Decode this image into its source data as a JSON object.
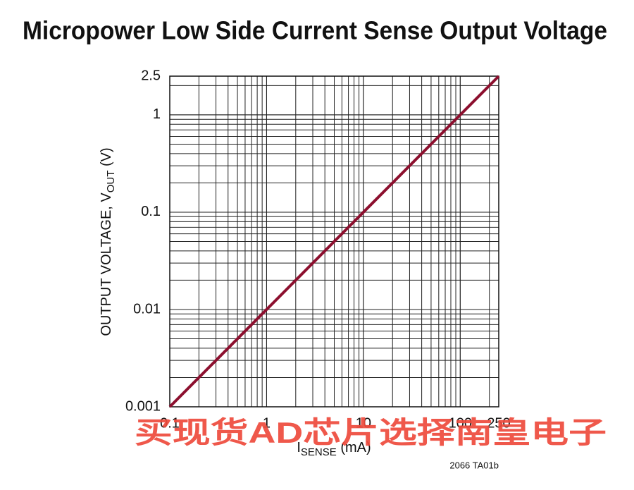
{
  "chart_data": {
    "type": "line",
    "title": "Micropower Low Side Current Sense Output Voltage",
    "xlabel": {
      "main": "I",
      "sub": "SENSE",
      "suffix": " (mA)"
    },
    "ylabel": {
      "main": "OUTPUT VOLTAGE, V",
      "sub": "OUT",
      "suffix": " (V)"
    },
    "x": [
      0.1,
      250
    ],
    "values": [
      0.001,
      2.5
    ],
    "color": "#8c0f2e",
    "xlim": [
      0.1,
      250
    ],
    "ylim": [
      0.001,
      2.5
    ],
    "xticks": [
      0.1,
      1,
      10,
      100,
      250
    ],
    "yticks": [
      0.001,
      0.01,
      0.1,
      1,
      2.5
    ],
    "xscale": "log",
    "yscale": "log",
    "grid": true,
    "annotations": [
      "2066 TA01b",
      "买现货AD芯片选择南皇电子"
    ]
  }
}
